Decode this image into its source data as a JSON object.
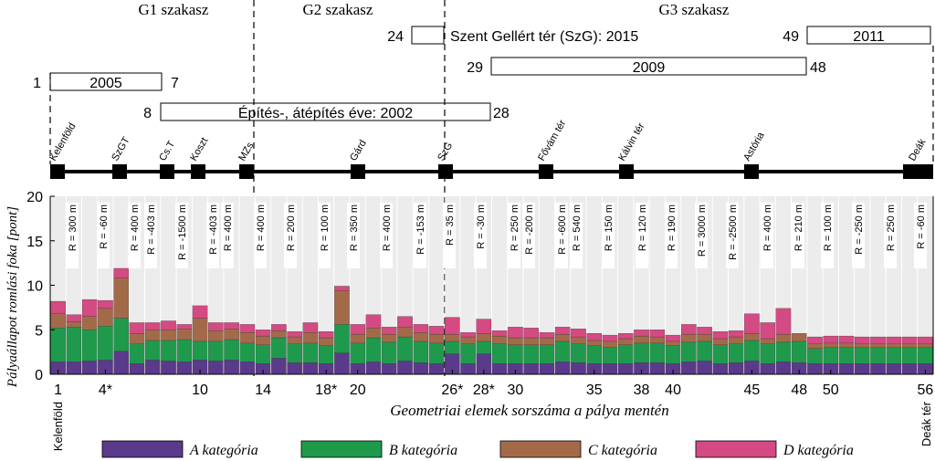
{
  "chart_data": {
    "type": "bar",
    "stacked": true,
    "ylabel": "Pályaállapot romlási foka [pont]",
    "xlabel": "Geometriai elemek sorszáma a pálya mentén",
    "ylim": [
      0,
      20
    ],
    "yticks": [
      "0",
      "5",
      "10",
      "15",
      "20"
    ],
    "grid": false,
    "legend_position": "bottom",
    "x_tick_labels": [
      {
        "x": 1,
        "label": "1"
      },
      {
        "x": 4,
        "label": "4*"
      },
      {
        "x": 10,
        "label": "10"
      },
      {
        "x": 14,
        "label": "14"
      },
      {
        "x": 18,
        "label": "18*"
      },
      {
        "x": 20,
        "label": "20"
      },
      {
        "x": 26,
        "label": "26*"
      },
      {
        "x": 28,
        "label": "28*"
      },
      {
        "x": 30,
        "label": "30"
      },
      {
        "x": 35,
        "label": "35"
      },
      {
        "x": 38,
        "label": "38"
      },
      {
        "x": 40,
        "label": "40"
      },
      {
        "x": 45,
        "label": "45"
      },
      {
        "x": 48,
        "label": "48"
      },
      {
        "x": 50,
        "label": "50"
      },
      {
        "x": 56,
        "label": "56"
      }
    ],
    "end_labels": {
      "left": "Kelenföld",
      "right": "Deák tér"
    },
    "series": [
      {
        "name": "A kategória",
        "color": "#5a3a8a",
        "values": [
          1.4,
          1.4,
          1.5,
          1.6,
          2.6,
          1.2,
          1.6,
          1.5,
          1.4,
          1.6,
          1.5,
          1.6,
          1.4,
          1.2,
          1.8,
          1.3,
          1.3,
          1.2,
          2.4,
          1.2,
          1.4,
          1.2,
          1.5,
          1.3,
          1.2,
          2.3,
          1.2,
          2.3,
          1.2,
          1.2,
          1.2,
          1.2,
          1.4,
          1.3,
          1.2,
          1.2,
          1.2,
          1.3,
          1.3,
          1.2,
          1.4,
          1.5,
          1.2,
          1.3,
          1.5,
          1.2,
          1.4,
          1.3,
          1.2,
          1.2,
          1.2,
          1.2,
          1.2,
          1.2,
          1.2,
          1.2
        ]
      },
      {
        "name": "B kategória",
        "color": "#1f9a4c",
        "values": [
          3.8,
          3.9,
          3.5,
          3.8,
          3.7,
          2.2,
          2.2,
          2.3,
          2.5,
          2.1,
          2.2,
          2.3,
          2.1,
          2.1,
          2.3,
          2.1,
          2.2,
          2.0,
          3.2,
          2.3,
          2.7,
          2.4,
          2.7,
          2.4,
          2.3,
          1.4,
          2.2,
          1.4,
          2.2,
          2.1,
          2.1,
          2.1,
          2.3,
          2.1,
          2.0,
          1.8,
          2.1,
          2.2,
          2.2,
          2.0,
          2.2,
          2.2,
          2.1,
          2.1,
          2.3,
          2.2,
          2.2,
          2.4,
          1.7,
          1.8,
          1.8,
          1.8,
          1.8,
          1.8,
          1.8,
          1.8
        ]
      },
      {
        "name": "C kategória",
        "color": "#a36a4a",
        "values": [
          1.6,
          0.6,
          1.5,
          2.0,
          4.5,
          1.2,
          1.2,
          1.2,
          1.2,
          2.6,
          1.2,
          1.2,
          1.2,
          1.0,
          0.8,
          0.8,
          1.2,
          0.9,
          3.8,
          1.0,
          1.1,
          0.9,
          1.1,
          1.0,
          1.0,
          0.8,
          0.8,
          0.9,
          0.9,
          0.8,
          0.8,
          0.8,
          0.8,
          0.8,
          0.6,
          0.7,
          0.7,
          0.8,
          0.7,
          0.5,
          0.9,
          0.8,
          0.7,
          0.8,
          0.8,
          0.6,
          0.9,
          0.9,
          0.5,
          0.5,
          0.5,
          0.4,
          0.4,
          0.4,
          0.4,
          0.4
        ]
      },
      {
        "name": "D kategória",
        "color": "#d44a82",
        "values": [
          1.4,
          0.8,
          1.9,
          0.9,
          1.1,
          1.2,
          0.8,
          1.0,
          0.5,
          1.4,
          0.9,
          0.7,
          0.9,
          0.7,
          0.7,
          0.6,
          1.1,
          0.7,
          0.5,
          1.1,
          1.5,
          0.8,
          1.2,
          0.9,
          0.9,
          1.9,
          0.5,
          1.6,
          0.6,
          1.2,
          1.1,
          0.6,
          0.8,
          0.9,
          0.8,
          0.7,
          0.6,
          0.7,
          0.8,
          0.7,
          1.1,
          0.8,
          0.8,
          0.7,
          2.2,
          1.8,
          2.9,
          0.0,
          0.8,
          0.8,
          0.8,
          0.8,
          0.8,
          0.8,
          0.8,
          0.8
        ]
      }
    ],
    "radius_labels": [
      "R = 300 m",
      "R = -60 m",
      "R = 400 m",
      "R = -403 m",
      "R = -1500 m",
      "R = -403 m",
      "R = 400 m",
      "R = 400 m",
      "R = 200 m",
      "R = 100 m",
      "R = 350 m",
      "R = 400 m",
      "R = -153 m",
      "R = 35 m",
      "R = -30 m",
      "R = 250 m",
      "R = -200 m",
      "R = -600 m",
      "R = 540 m",
      "R = 150 m",
      "R = 120 m",
      "R = 190 m",
      "R = 3000 m",
      "R = -2500 m",
      "R = 400 m",
      "R = 210 m",
      "R = 100 m",
      "R = -250 m",
      "R = 250 m",
      "R = -60 m"
    ],
    "sections": [
      "G1 szakasz",
      "G2 szakasz",
      "G3 szakasz"
    ],
    "stations": [
      "Kelenföld",
      "SzGT",
      "Cs.T",
      "Koszt",
      "MZs",
      "Gárd",
      "SzG",
      "Fővám tér",
      "Kálvin tér",
      "Astória",
      "Deák"
    ],
    "timeline": [
      {
        "start": "1",
        "label": "2005",
        "end": "7"
      },
      {
        "start": "8",
        "label": "Építés-, átépítés éve: 2002",
        "end": "28"
      },
      {
        "start": "24",
        "label": "Szent Gellért tér (SzG): 2015",
        "end": ""
      },
      {
        "start": "29",
        "label": "2009",
        "end": "48"
      },
      {
        "start": "49",
        "label": "2011",
        "end": ""
      }
    ]
  }
}
